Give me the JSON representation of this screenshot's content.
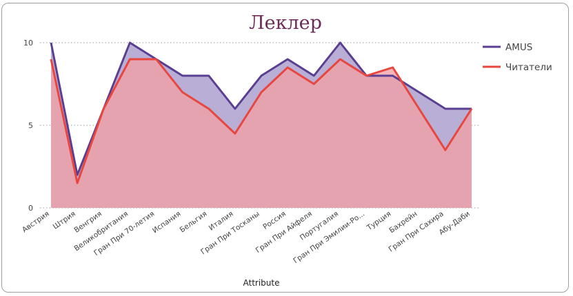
{
  "chart_data": {
    "type": "area",
    "title": "Леклер",
    "xlabel": "Attribute",
    "ylabel": "",
    "categories": [
      "Австрия",
      "Штрия",
      "Венгрия",
      "Великобритания",
      "Гран При 70-летия",
      "Испания",
      "Бельгия",
      "Италия",
      "Гран При Тосканы",
      "Россия",
      "Гран При Айфеля",
      "Португалия",
      "Гран При Эмилии-Ро...",
      "Турция",
      "Бахрейн",
      "Гран При Сахира",
      "Абу-Даби"
    ],
    "series": [
      {
        "name": "AMUS",
        "color": "#5a3e91",
        "fill": "#b8aed6",
        "values": [
          10,
          2,
          6,
          10,
          9,
          8,
          8,
          6,
          8,
          9,
          8,
          10,
          8,
          8,
          7,
          6,
          6
        ]
      },
      {
        "name": "Читатели",
        "color": "#e8463f",
        "fill": "#f49ea2",
        "values": [
          9,
          1.5,
          6,
          9,
          9,
          7,
          6,
          4.5,
          7,
          8.5,
          7.5,
          9,
          8,
          8.5,
          6,
          3.5,
          6
        ]
      }
    ],
    "yticks": [
      0,
      5,
      10
    ],
    "ylim": [
      0,
      10
    ],
    "grid": true,
    "legend": "right"
  }
}
